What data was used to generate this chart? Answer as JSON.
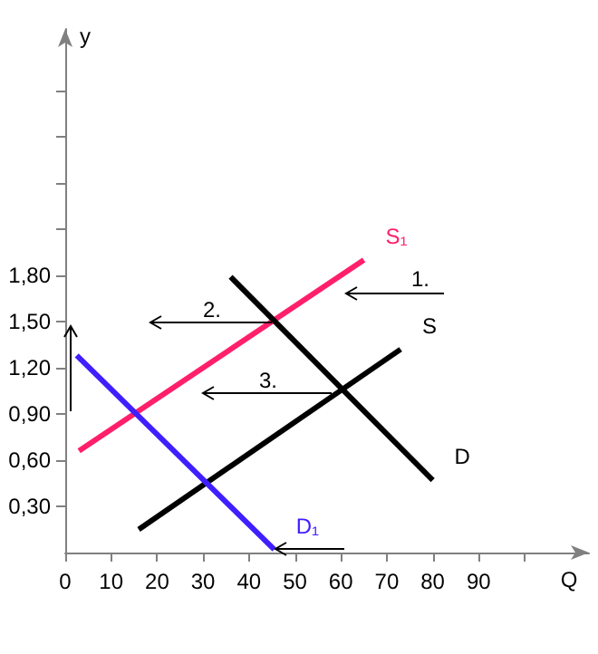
{
  "chart_data": {
    "type": "line",
    "xlabel": "Q",
    "ylabel": "y",
    "xlim": [
      0,
      114
    ],
    "ylim": [
      0,
      3.4
    ],
    "xticks": [
      0,
      10,
      20,
      30,
      40,
      50,
      60,
      70,
      80,
      90,
      {
        "value": 100,
        "label": null
      }
    ],
    "yticks": [
      {
        "value": 0.3,
        "label": "0,30"
      },
      {
        "value": 0.6,
        "label": "0,60"
      },
      {
        "value": 0.9,
        "label": "0,90"
      },
      {
        "value": 1.2,
        "label": "1,20"
      },
      {
        "value": 1.5,
        "label": "1,50"
      },
      {
        "value": 1.8,
        "label": "1,80"
      },
      {
        "value": 2.1,
        "label": null
      },
      {
        "value": 2.4,
        "label": null
      },
      {
        "value": 2.7,
        "label": null
      },
      {
        "value": 3.0,
        "label": null
      }
    ],
    "grid": false,
    "legend": false,
    "marker": "none",
    "series": [
      {
        "name": "S₁",
        "color": "#ff1f6b",
        "x": [
          3,
          65
        ],
        "values": [
          0.66,
          1.9
        ]
      },
      {
        "name": "S",
        "color": "#000000",
        "x": [
          16,
          73
        ],
        "values": [
          0.15,
          1.32
        ]
      },
      {
        "name": "D",
        "color": "#000000",
        "x": [
          36,
          80
        ],
        "values": [
          1.79,
          0.47
        ]
      },
      {
        "name": "D₁",
        "color": "#3f1fff",
        "x": [
          2.5,
          45.5
        ],
        "values": [
          1.28,
          0.02
        ]
      }
    ],
    "annotations": [
      "1.",
      "2.",
      "3."
    ]
  }
}
